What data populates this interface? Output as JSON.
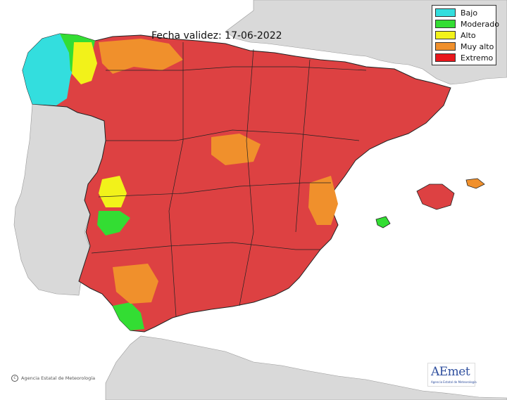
{
  "map": {
    "date_label": "Fecha validez: 17-06-2022",
    "copyright_text": "Agencia Estatal de Meteorología",
    "logo_text": "AEmet",
    "logo_subtext": "Agencia Estatal de Meteorología"
  },
  "legend": {
    "items": [
      {
        "label": "Bajo",
        "color": "#33dede"
      },
      {
        "label": "Moderado",
        "color": "#33dd33"
      },
      {
        "label": "Alto",
        "color": "#f2f21a"
      },
      {
        "label": "Muy alto",
        "color": "#f0902c"
      },
      {
        "label": "Extremo",
        "color": "#e8161c"
      }
    ]
  },
  "colors": {
    "sea": "#ffffff",
    "land_other": "#d9d9d9",
    "border": "#222222",
    "extreme_fill": "#dd4142"
  }
}
